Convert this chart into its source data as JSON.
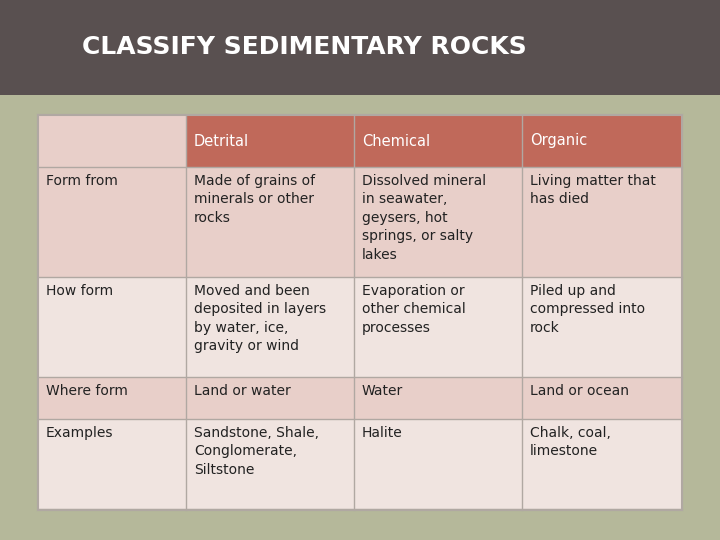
{
  "title": "CLASSIFY SEDIMENTARY ROCKS",
  "title_bg": "#595050",
  "title_text_color": "#ffffff",
  "page_bg": "#b5b89a",
  "table_outer_bg": "#c8c9b0",
  "table_bg": "#f0e4e0",
  "header_bg": "#c0695a",
  "header_text_color": "#ffffff",
  "row_bg_odd": "#e8cfc9",
  "row_bg_even": "#f0e4e0",
  "cell_text_color": "#222222",
  "border_color": "#b0a8a2",
  "columns": [
    "Detrital",
    "Chemical",
    "Organic"
  ],
  "rows": [
    {
      "label": "Form from",
      "values": [
        "Made of grains of\nminerals or other\nrocks",
        "Dissolved mineral\nin seawater,\ngeysers, hot\nsprings, or salty\nlakes",
        "Living matter that\nhas died"
      ]
    },
    {
      "label": "How form",
      "values": [
        "Moved and been\ndeposited in layers\nby water, ice,\ngravity or wind",
        "Evaporation or\nother chemical\nprocesses",
        "Piled up and\ncompressed into\nrock"
      ]
    },
    {
      "label": "Where form",
      "values": [
        "Land or water",
        "Water",
        "Land or ocean"
      ]
    },
    {
      "label": "Examples",
      "values": [
        "Sandstone, Shale,\nConglomerate,\nSiltstone",
        "Halite",
        "Chalk, coal,\nlimestone"
      ]
    }
  ]
}
